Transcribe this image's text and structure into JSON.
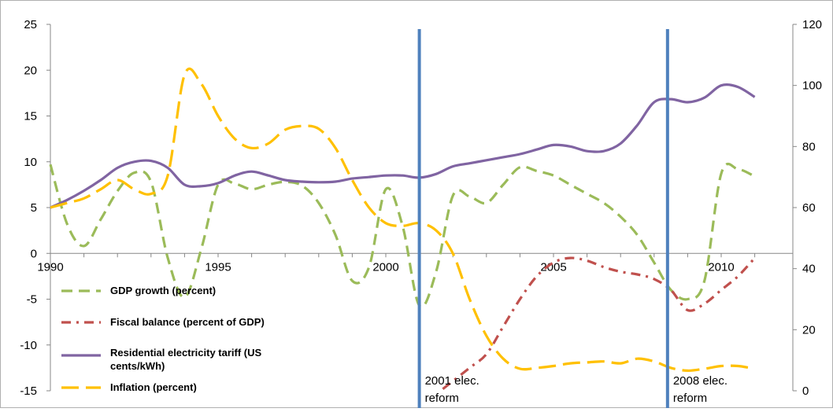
{
  "chart_data": {
    "type": "line",
    "title": "",
    "xlabel": "",
    "ylabel": "",
    "y2label": "",
    "xlim": [
      1990,
      2011.5
    ],
    "ylim": [
      -15,
      25
    ],
    "y2lim": [
      0,
      120
    ],
    "x_ticks": [
      1990,
      1995,
      2000,
      2005,
      2010
    ],
    "y_ticks": [
      -15,
      -10,
      -5,
      0,
      5,
      10,
      15,
      20,
      25
    ],
    "y2_ticks": [
      0,
      20,
      40,
      60,
      80,
      100,
      120
    ],
    "grid": false,
    "legend_position": "bottom-left",
    "series": [
      {
        "name": "GDP growth (percent)",
        "axis": "left",
        "style": "dashed",
        "color": "#9bbb59",
        "x": [
          1990,
          1990.5,
          1991,
          1991.5,
          1992,
          1992.5,
          1993,
          1993.5,
          1994,
          1994.5,
          1995,
          1995.5,
          1996,
          1996.5,
          1997,
          1997.5,
          1998,
          1998.5,
          1999,
          1999.5,
          2000,
          2000.5,
          2001,
          2001.5,
          2002,
          2002.5,
          2003,
          2003.5,
          2004,
          2004.5,
          2005,
          2005.5,
          2006,
          2006.5,
          2007,
          2007.5,
          2008,
          2008.5,
          2009,
          2009.5,
          2010,
          2010.5,
          2011
        ],
        "values": [
          9.7,
          3.2,
          0.8,
          3.7,
          6.8,
          8.8,
          7.8,
          -0.5,
          -4.8,
          0.5,
          7.5,
          7.6,
          7.0,
          7.5,
          7.8,
          7.4,
          5.5,
          2.0,
          -3.0,
          -1.5,
          7.0,
          3.0,
          -5.7,
          -2.0,
          6.3,
          6.2,
          5.5,
          7.5,
          9.4,
          9.0,
          8.5,
          7.5,
          6.5,
          5.5,
          4.0,
          2.0,
          -1.0,
          -4.0,
          -5.0,
          -3.0,
          8.7,
          9.2,
          8.4
        ]
      },
      {
        "name": "Fiscal balance (percent of GDP)",
        "axis": "left",
        "style": "dash-dot",
        "color": "#c0504d",
        "x": [
          2001.7,
          2002.5,
          2003,
          2003.5,
          2004,
          2004.5,
          2005,
          2005.5,
          2006,
          2006.5,
          2007,
          2007.5,
          2008,
          2008.5,
          2009,
          2009.5,
          2010,
          2010.5,
          2011
        ],
        "values": [
          -14.8,
          -12.5,
          -11.0,
          -8.0,
          -5.0,
          -2.5,
          -1.0,
          -0.5,
          -0.8,
          -1.5,
          -2.0,
          -2.3,
          -2.8,
          -4.0,
          -6.2,
          -5.5,
          -4.0,
          -2.5,
          -0.5
        ]
      },
      {
        "name": "Residential electricity tariff (US cents/kWh)",
        "axis": "right",
        "style": "solid",
        "color": "#8064a2",
        "x": [
          1990,
          1990.5,
          1991,
          1991.5,
          1992,
          1992.5,
          1993,
          1993.5,
          1994,
          1994.5,
          1995,
          1995.5,
          1996,
          1996.5,
          1997,
          1997.5,
          1998,
          1998.5,
          1999,
          1999.5,
          2000,
          2000.5,
          2001,
          2001.5,
          2002,
          2002.5,
          2003,
          2003.5,
          2004,
          2004.5,
          2005,
          2005.5,
          2006,
          2006.5,
          2007,
          2007.5,
          2008,
          2008.5,
          2009,
          2009.5,
          2010,
          2010.5,
          2011
        ],
        "values": [
          60.0,
          62.5,
          65.5,
          69.0,
          73.0,
          75.0,
          75.3,
          73.0,
          67.5,
          67.0,
          68.0,
          70.5,
          71.8,
          70.5,
          69.0,
          68.5,
          68.3,
          68.5,
          69.5,
          70.0,
          70.5,
          70.5,
          69.8,
          71.0,
          73.5,
          74.5,
          75.5,
          76.5,
          77.5,
          79.0,
          80.5,
          80.0,
          78.5,
          78.5,
          81.0,
          87.0,
          94.5,
          95.5,
          94.5,
          96.0,
          100.0,
          99.5,
          96.2
        ]
      },
      {
        "name": "Inflation (percent)",
        "axis": "left",
        "style": "long-dash",
        "color": "#ffc000",
        "x": [
          1990,
          1990.5,
          1991,
          1991.5,
          1992,
          1992.5,
          1993,
          1993.5,
          1994,
          1994.5,
          1995,
          1995.5,
          1996,
          1996.5,
          1997,
          1997.5,
          1998,
          1998.5,
          1999,
          1999.5,
          2000,
          2000.5,
          2001,
          2001.5,
          2002,
          2002.5,
          2003,
          2003.5,
          2004,
          2004.5,
          2005,
          2005.5,
          2006,
          2006.5,
          2007,
          2007.5,
          2008,
          2008.5,
          2009,
          2009.5,
          2010,
          2010.5,
          2011
        ],
        "values": [
          5.0,
          5.5,
          6.0,
          7.0,
          8.0,
          7.0,
          6.5,
          8.5,
          19.5,
          18.5,
          15.0,
          12.5,
          11.5,
          12.0,
          13.5,
          13.9,
          13.6,
          11.5,
          8.0,
          5.0,
          3.3,
          3.0,
          3.3,
          2.5,
          0.0,
          -5.0,
          -9.0,
          -11.5,
          -12.6,
          -12.5,
          -12.3,
          -12.0,
          -11.9,
          -11.8,
          -12.0,
          -11.5,
          -11.8,
          -12.5,
          -12.8,
          -12.6,
          -12.3,
          -12.3,
          -12.6
        ]
      }
    ],
    "reference_lines": [
      {
        "x": 2001,
        "label": "2001 elec. reform",
        "color": "#4f81bd"
      },
      {
        "x": 2008.4,
        "label": "2008 elec. reform",
        "color": "#4f81bd"
      }
    ]
  }
}
